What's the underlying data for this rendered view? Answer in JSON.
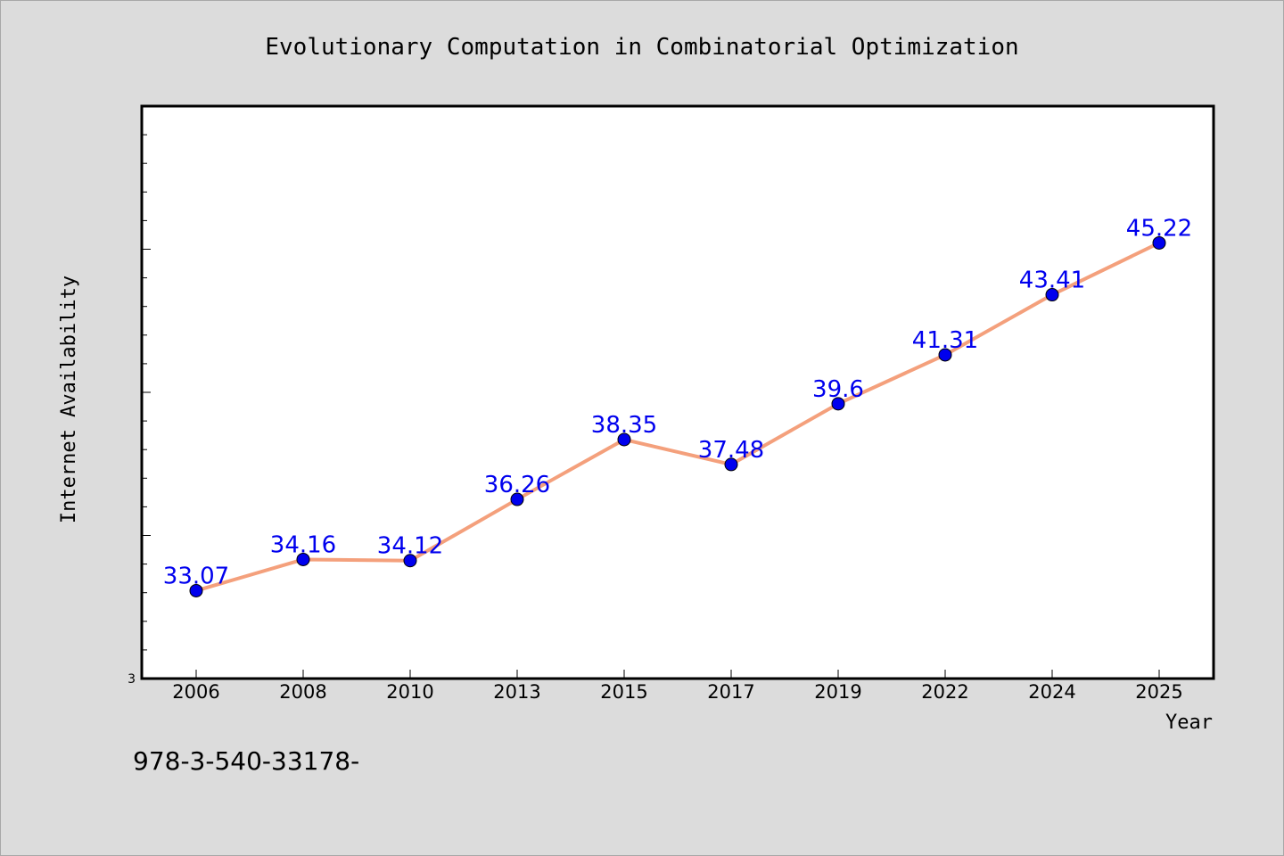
{
  "chart_data": {
    "type": "line",
    "title": "Evolutionary Computation in Combinatorial Optimization",
    "xlabel": "Year",
    "ylabel": "Internet Availability",
    "categories": [
      "2006",
      "2008",
      "2010",
      "2013",
      "2015",
      "2017",
      "2019",
      "2022",
      "2024",
      "2025"
    ],
    "series": [
      {
        "values": [
          33.07,
          34.16,
          34.12,
          36.26,
          38.35,
          37.48,
          39.6,
          41.31,
          43.41,
          45.22
        ]
      }
    ],
    "data_labels": [
      "33.07",
      "34.16",
      "34.12",
      "36.26",
      "38.35",
      "37.48",
      "39.6",
      "41.31",
      "43.41",
      "45.22"
    ],
    "ylim": [
      30,
      50
    ],
    "y_tick_labels": [
      "3"
    ],
    "grid": false,
    "line_color": "#f4a07c",
    "marker_color": "#0000ee",
    "label_color": "#0000ee"
  },
  "footnote": "978-3-540-33178-"
}
